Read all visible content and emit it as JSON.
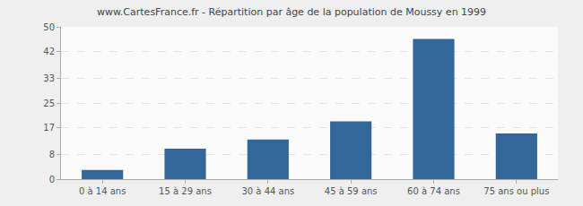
{
  "chart_data": {
    "type": "bar",
    "title": "www.CartesFrance.fr - Répartition par âge de la population de Moussy en 1999",
    "categories": [
      "0 à 14 ans",
      "15 à 29 ans",
      "30 à 44 ans",
      "45 à 59 ans",
      "60 à 74 ans",
      "75 ans ou plus"
    ],
    "values": [
      3,
      10,
      13,
      19,
      46,
      15
    ],
    "color": "#336699",
    "ylim": [
      0,
      50
    ],
    "yticks": [
      0,
      8,
      17,
      25,
      33,
      42,
      50
    ],
    "grid": true
  }
}
